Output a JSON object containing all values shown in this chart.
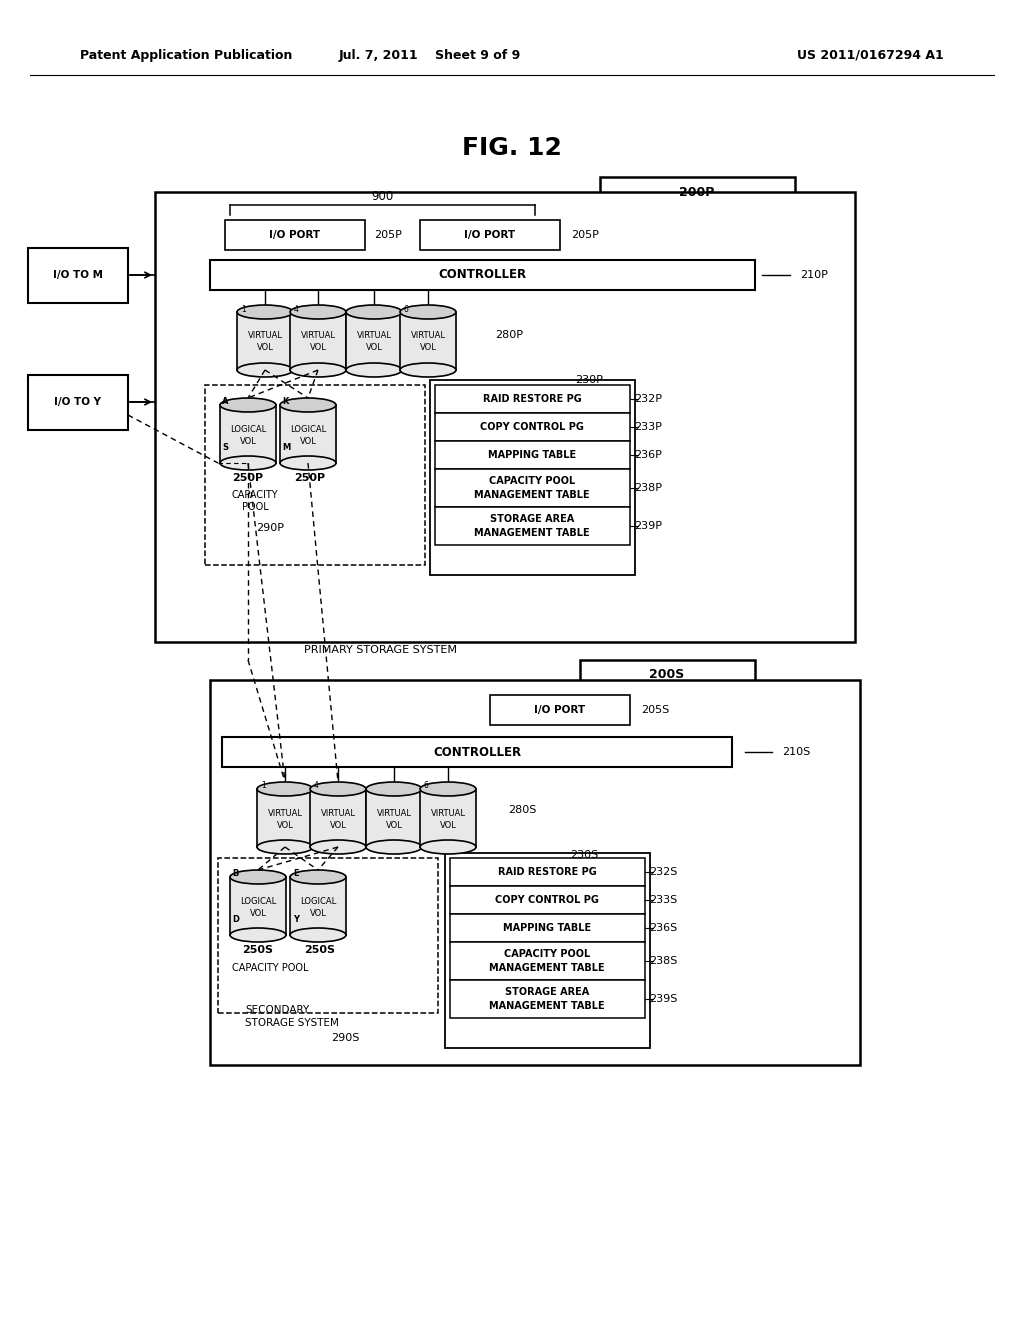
{
  "title": "FIG. 12",
  "header_left": "Patent Application Publication",
  "header_center": "Jul. 7, 2011    Sheet 9 of 9",
  "header_right": "US 2011/0167294 A1",
  "bg_color": "#ffffff"
}
